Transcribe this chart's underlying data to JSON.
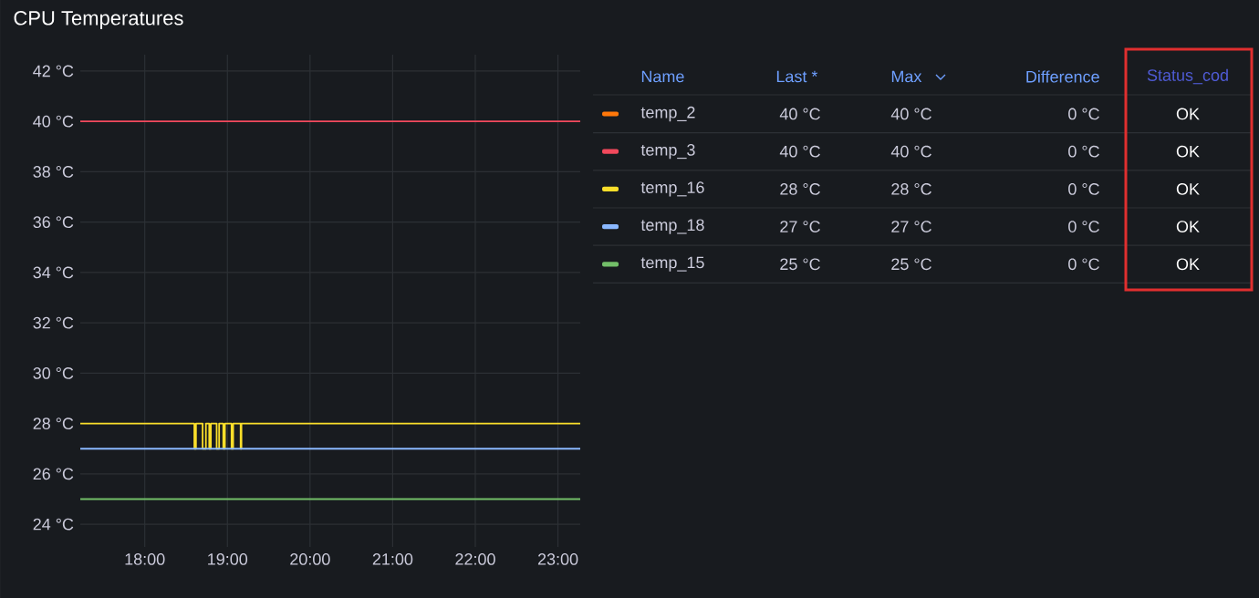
{
  "chart_data": {
    "type": "line",
    "title": "CPU Temperatures",
    "xlim": [
      17.22,
      23.27
    ],
    "xticks": [
      {
        "value": 18,
        "label": "18:00"
      },
      {
        "value": 19,
        "label": "19:00"
      },
      {
        "value": 20,
        "label": "20:00"
      },
      {
        "value": 21,
        "label": "21:00"
      },
      {
        "value": 22,
        "label": "22:00"
      },
      {
        "value": 23,
        "label": "23:00"
      }
    ],
    "ylim": [
      23.1,
      42.65
    ],
    "yticks": [
      {
        "value": 24,
        "label": "24 °C"
      },
      {
        "value": 26,
        "label": "26 °C"
      },
      {
        "value": 28,
        "label": "28 °C"
      },
      {
        "value": 30,
        "label": "30 °C"
      },
      {
        "value": 32,
        "label": "32 °C"
      },
      {
        "value": 34,
        "label": "34 °C"
      },
      {
        "value": 36,
        "label": "36 °C"
      },
      {
        "value": 38,
        "label": "38 °C"
      },
      {
        "value": 40,
        "label": "40 °C"
      },
      {
        "value": 42,
        "label": "42 °C"
      }
    ],
    "grid": true,
    "legend": "right",
    "series": [
      {
        "name": "temp_2",
        "color": "#ff780a"
      },
      {
        "name": "temp_3",
        "color": "#f2495c",
        "x": [
          17.22,
          23.27
        ],
        "values": [
          40,
          40
        ]
      },
      {
        "name": "temp_16",
        "color": "#fade2a",
        "x": [
          17.22,
          18.6,
          18.6,
          18.62,
          18.62,
          18.7,
          18.7,
          18.74,
          18.74,
          18.78,
          18.78,
          18.8,
          18.8,
          18.87,
          18.87,
          18.9,
          18.9,
          18.95,
          18.95,
          18.97,
          18.97,
          19.05,
          19.05,
          19.07,
          19.07,
          19.16,
          19.16,
          19.17,
          19.17,
          23.27
        ],
        "values": [
          28,
          28,
          27,
          27,
          28,
          28,
          27,
          27,
          28,
          28,
          27,
          27,
          28,
          28,
          27,
          27,
          28,
          28,
          27,
          27,
          28,
          28,
          27,
          27,
          28,
          28,
          27,
          27,
          28,
          28
        ]
      },
      {
        "name": "temp_18",
        "color": "#8ab8ff",
        "x": [
          17.22,
          23.27
        ],
        "values": [
          27,
          27
        ]
      },
      {
        "name": "temp_15",
        "color": "#73bf69",
        "x": [
          17.22,
          23.27
        ],
        "values": [
          25,
          25
        ]
      }
    ],
    "annotations": [
      "Name",
      "Last *",
      "Max",
      "Difference",
      "Status_cod",
      "40 °C",
      "40 °C",
      "0 °C",
      "OK",
      "40 °C",
      "40 °C",
      "0 °C",
      "OK",
      "28 °C",
      "28 °C",
      "0 °C",
      "OK",
      "27 °C",
      "27 °C",
      "0 °C",
      "OK",
      "25 °C",
      "25 °C",
      "0 °C",
      "OK"
    ]
  }
}
